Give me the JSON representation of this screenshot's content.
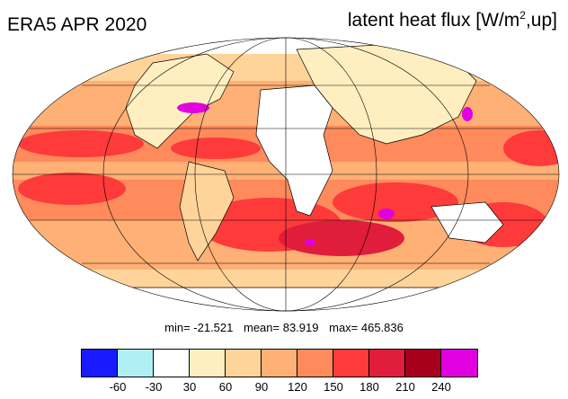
{
  "title_left": "ERA5 APR 2020",
  "title_right": {
    "text": "latent heat flux [W/m",
    "sup": "2",
    "suffix": ",up]"
  },
  "stats": {
    "min": "min= -21.521",
    "mean": "mean= 83.919",
    "max": "max= 465.836"
  },
  "colorbar": {
    "colors": [
      "#1a1aff",
      "#b0f0f5",
      "#ffffff",
      "#ffefc0",
      "#ffd49a",
      "#ffb075",
      "#ff8a5c",
      "#ff3a3a",
      "#e01d3a",
      "#a8001c",
      "#e000e0"
    ],
    "labels": [
      "-60",
      "-30",
      "30",
      "60",
      "90",
      "120",
      "150",
      "180",
      "210",
      "240"
    ]
  },
  "map": {
    "projection": "mollweide",
    "grid": true,
    "coastlines": true
  }
}
